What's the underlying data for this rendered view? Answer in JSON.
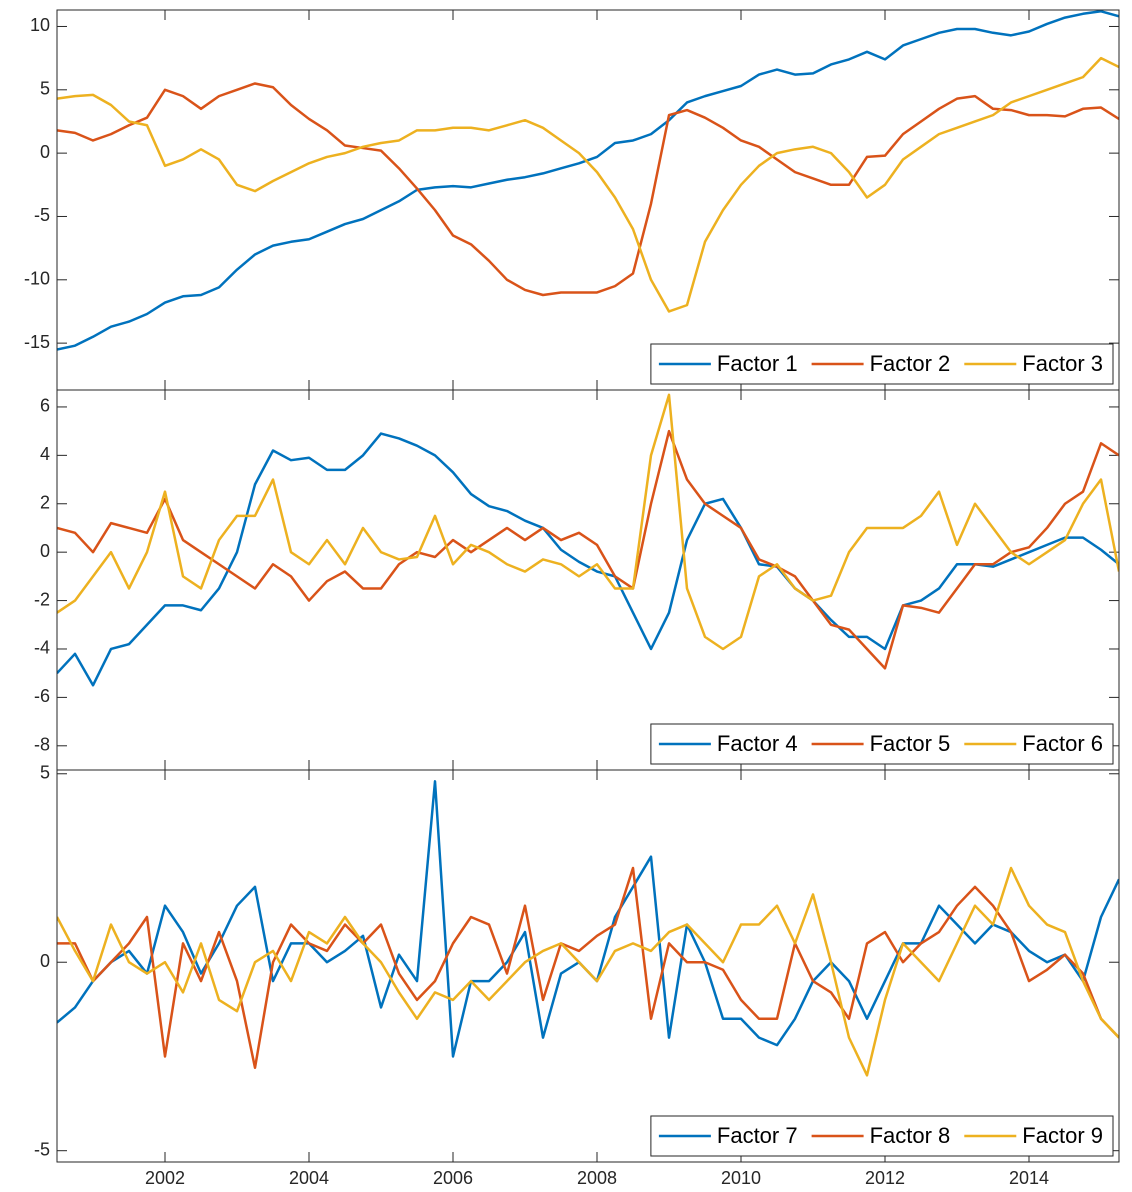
{
  "chart_data": [
    {
      "type": "line",
      "legend": "lower right",
      "x": [
        2000.5,
        2000.75,
        2001,
        2001.25,
        2001.5,
        2001.75,
        2002,
        2002.25,
        2002.5,
        2002.75,
        2003,
        2003.25,
        2003.5,
        2003.75,
        2004,
        2004.25,
        2004.5,
        2004.75,
        2005,
        2005.25,
        2005.5,
        2005.75,
        2006,
        2006.25,
        2006.5,
        2006.75,
        2007,
        2007.25,
        2007.5,
        2007.75,
        2008,
        2008.25,
        2008.5,
        2008.75,
        2009,
        2009.25,
        2009.5,
        2009.75,
        2010,
        2010.25,
        2010.5,
        2010.75,
        2011,
        2011.25,
        2011.5,
        2011.75,
        2012,
        2012.25,
        2012.5,
        2012.75,
        2013,
        2013.25,
        2013.5,
        2013.75,
        2014,
        2014.25,
        2014.5,
        2014.75,
        2015,
        2015.25
      ],
      "xlim": [
        2000.5,
        2015.25
      ],
      "ylim": [
        -18.7,
        11.3
      ],
      "yticks": [
        -15,
        -10,
        -5,
        0,
        5,
        10
      ],
      "series": [
        {
          "name": "Factor 1",
          "color": "#0072bd",
          "values": [
            -15.5,
            -15.2,
            -14.5,
            -13.7,
            -13.3,
            -12.7,
            -11.8,
            -11.3,
            -11.2,
            -10.6,
            -9.2,
            -8,
            -7.3,
            -7,
            -6.8,
            -6.2,
            -5.6,
            -5.2,
            -4.5,
            -3.8,
            -2.9,
            -2.7,
            -2.6,
            -2.7,
            -2.4,
            -2.1,
            -1.9,
            -1.6,
            -1.2,
            -0.8,
            -0.3,
            0.8,
            1,
            1.5,
            2.6,
            4,
            4.5,
            4.9,
            5.3,
            6.2,
            6.6,
            6.2,
            6.3,
            7,
            7.4,
            8,
            7.4,
            8.5,
            9,
            9.5,
            9.8,
            9.8,
            9.5,
            9.3,
            9.6,
            10.2,
            10.7,
            11,
            11.2,
            10.8
          ]
        },
        {
          "name": "Factor 2",
          "color": "#d95319",
          "values": [
            1.8,
            1.6,
            1,
            1.5,
            2.2,
            2.8,
            5,
            4.5,
            3.5,
            4.5,
            5,
            5.5,
            5.2,
            3.8,
            2.7,
            1.8,
            0.6,
            0.4,
            0.2,
            -1.2,
            -2.8,
            -4.5,
            -6.5,
            -7.2,
            -8.5,
            -10,
            -10.8,
            -11.2,
            -11,
            -11,
            -11,
            -10.5,
            -9.5,
            -4,
            3,
            3.4,
            2.8,
            2,
            1,
            0.5,
            -0.5,
            -1.5,
            -2,
            -2.5,
            -2.5,
            -0.3,
            -0.2,
            1.5,
            2.5,
            3.5,
            4.3,
            4.5,
            3.5,
            3.4,
            3,
            3,
            2.9,
            3.5,
            3.6,
            2.7
          ]
        },
        {
          "name": "Factor 3",
          "color": "#edb120",
          "values": [
            4.3,
            4.5,
            4.6,
            3.8,
            2.5,
            2.2,
            -1,
            -0.5,
            0.3,
            -0.5,
            -2.5,
            -3,
            -2.2,
            -1.5,
            -0.8,
            -0.3,
            0,
            0.5,
            0.8,
            1,
            1.8,
            1.8,
            2,
            2,
            1.8,
            2.2,
            2.6,
            2,
            1,
            0,
            -1.5,
            -3.5,
            -6,
            -10,
            -12.5,
            -12,
            -7,
            -4.5,
            -2.5,
            -1,
            0,
            0.3,
            0.5,
            0,
            -1.5,
            -3.5,
            -2.5,
            -0.5,
            0.5,
            1.5,
            2,
            2.5,
            3,
            4,
            4.5,
            5,
            5.5,
            6,
            7.5,
            6.8
          ]
        }
      ]
    },
    {
      "type": "line",
      "legend": "lower right",
      "x": [
        2000.5,
        2000.75,
        2001,
        2001.25,
        2001.5,
        2001.75,
        2002,
        2002.25,
        2002.5,
        2002.75,
        2003,
        2003.25,
        2003.5,
        2003.75,
        2004,
        2004.25,
        2004.5,
        2004.75,
        2005,
        2005.25,
        2005.5,
        2005.75,
        2006,
        2006.25,
        2006.5,
        2006.75,
        2007,
        2007.25,
        2007.5,
        2007.75,
        2008,
        2008.25,
        2008.5,
        2008.75,
        2009,
        2009.25,
        2009.5,
        2009.75,
        2010,
        2010.25,
        2010.5,
        2010.75,
        2011,
        2011.25,
        2011.5,
        2011.75,
        2012,
        2012.25,
        2012.5,
        2012.75,
        2013,
        2013.25,
        2013.5,
        2013.75,
        2014,
        2014.25,
        2014.5,
        2014.75,
        2015,
        2015.25
      ],
      "xlim": [
        2000.5,
        2015.25
      ],
      "ylim": [
        -9,
        6.7
      ],
      "yticks": [
        -8,
        -6,
        -4,
        -2,
        0,
        2,
        4,
        6
      ],
      "series": [
        {
          "name": "Factor 4",
          "color": "#0072bd",
          "values": [
            -5,
            -4.2,
            -5.5,
            -4,
            -3.8,
            -3,
            -2.2,
            -2.2,
            -2.4,
            -1.5,
            0,
            2.8,
            4.2,
            3.8,
            3.9,
            3.4,
            3.4,
            4,
            4.9,
            4.7,
            4.4,
            4,
            3.3,
            2.4,
            1.9,
            1.7,
            1.3,
            1,
            0.1,
            -0.4,
            -0.8,
            -1,
            -2.5,
            -4,
            -2.5,
            0.5,
            2,
            2.2,
            1,
            -0.5,
            -0.6,
            -1.5,
            -2,
            -2.8,
            -3.5,
            -3.5,
            -4,
            -2.2,
            -2,
            -1.5,
            -0.5,
            -0.5,
            -0.6,
            -0.3,
            0,
            0.3,
            0.6,
            0.6,
            0.1,
            -0.5
          ]
        },
        {
          "name": "Factor 5",
          "color": "#d95319",
          "values": [
            1,
            0.8,
            0,
            1.2,
            1,
            0.8,
            2.2,
            0.5,
            0,
            -0.5,
            -1,
            -1.5,
            -0.5,
            -1,
            -2,
            -1.2,
            -0.8,
            -1.5,
            -1.5,
            -0.5,
            0,
            -0.2,
            0.5,
            0,
            0.5,
            1,
            0.5,
            1,
            0.5,
            0.8,
            0.3,
            -1,
            -1.5,
            2,
            5,
            3,
            2,
            1.5,
            1,
            -0.3,
            -0.6,
            -1,
            -2,
            -3,
            -3.2,
            -4,
            -4.8,
            -2.2,
            -2.3,
            -2.5,
            -1.5,
            -0.5,
            -0.5,
            0,
            0.2,
            1,
            2,
            2.5,
            4.5,
            4
          ]
        },
        {
          "name": "Factor 6",
          "color": "#edb120",
          "values": [
            -2.5,
            -2,
            -1,
            0,
            -1.5,
            0,
            2.5,
            -1,
            -1.5,
            0.5,
            1.5,
            1.5,
            3,
            0,
            -0.5,
            0.5,
            -0.5,
            1,
            0,
            -0.3,
            -0.2,
            1.5,
            -0.5,
            0.3,
            0,
            -0.5,
            -0.8,
            -0.3,
            -0.5,
            -1,
            -0.5,
            -1.5,
            -1.5,
            4,
            6.5,
            -1.5,
            -3.5,
            -4,
            -3.5,
            -1,
            -0.5,
            -1.5,
            -2,
            -1.8,
            0,
            1,
            1,
            1,
            1.5,
            2.5,
            0.3,
            2,
            1,
            0,
            -0.5,
            0,
            0.5,
            2,
            3,
            -0.8
          ]
        }
      ]
    },
    {
      "type": "line",
      "legend": "lower right",
      "x": [
        2000.5,
        2000.75,
        2001,
        2001.25,
        2001.5,
        2001.75,
        2002,
        2002.25,
        2002.5,
        2002.75,
        2003,
        2003.25,
        2003.5,
        2003.75,
        2004,
        2004.25,
        2004.5,
        2004.75,
        2005,
        2005.25,
        2005.5,
        2005.75,
        2006,
        2006.25,
        2006.5,
        2006.75,
        2007,
        2007.25,
        2007.5,
        2007.75,
        2008,
        2008.25,
        2008.5,
        2008.75,
        2009,
        2009.25,
        2009.5,
        2009.75,
        2010,
        2010.25,
        2010.5,
        2010.75,
        2011,
        2011.25,
        2011.5,
        2011.75,
        2012,
        2012.25,
        2012.5,
        2012.75,
        2013,
        2013.25,
        2013.5,
        2013.75,
        2014,
        2014.25,
        2014.5,
        2014.75,
        2015,
        2015.25
      ],
      "xlim": [
        2000.5,
        2015.25
      ],
      "xticks": [
        2002,
        2004,
        2006,
        2008,
        2010,
        2012,
        2014
      ],
      "ylim": [
        -5.3,
        5.1
      ],
      "yticks": [
        -5,
        0,
        5
      ],
      "series": [
        {
          "name": "Factor 7",
          "color": "#0072bd",
          "values": [
            -1.6,
            -1.2,
            -0.5,
            0,
            0.3,
            -0.3,
            1.5,
            0.8,
            -0.3,
            0.5,
            1.5,
            2,
            -0.5,
            0.5,
            0.5,
            0,
            0.3,
            0.7,
            -1.2,
            0.2,
            -0.5,
            4.8,
            -2.5,
            -0.5,
            -0.5,
            0,
            0.8,
            -2,
            -0.3,
            0,
            -0.5,
            1.2,
            2,
            2.8,
            -2,
            1,
            0,
            -1.5,
            -1.5,
            -2,
            -2.2,
            -1.5,
            -0.5,
            0,
            -0.5,
            -1.5,
            -0.5,
            0.5,
            0.5,
            1.5,
            1,
            0.5,
            1,
            0.8,
            0.3,
            0,
            0.2,
            -0.5,
            1.2,
            2.2
          ]
        },
        {
          "name": "Factor 8",
          "color": "#d95319",
          "values": [
            0.5,
            0.5,
            -0.5,
            0,
            0.5,
            1.2,
            -2.5,
            0.5,
            -0.5,
            0.8,
            -0.5,
            -2.8,
            0,
            1,
            0.5,
            0.3,
            1,
            0.5,
            1,
            -0.3,
            -1,
            -0.5,
            0.5,
            1.2,
            1,
            -0.3,
            1.5,
            -1,
            0.5,
            0.3,
            0.7,
            1,
            2.5,
            -1.5,
            0.5,
            0,
            0,
            -0.2,
            -1,
            -1.5,
            -1.5,
            0.5,
            -0.5,
            -0.8,
            -1.5,
            0.5,
            0.8,
            0,
            0.5,
            0.8,
            1.5,
            2,
            1.5,
            0.8,
            -0.5,
            -0.2,
            0.2,
            -0.3,
            -1.5,
            -2
          ]
        },
        {
          "name": "Factor 9",
          "color": "#edb120",
          "values": [
            1.2,
            0.3,
            -0.5,
            1,
            0,
            -0.3,
            0,
            -0.8,
            0.5,
            -1,
            -1.3,
            0,
            0.3,
            -0.5,
            0.8,
            0.5,
            1.2,
            0.5,
            0,
            -0.8,
            -1.5,
            -0.8,
            -1,
            -0.5,
            -1,
            -0.5,
            0,
            0.3,
            0.5,
            0,
            -0.5,
            0.3,
            0.5,
            0.3,
            0.8,
            1,
            0.5,
            0,
            1,
            1,
            1.5,
            0.5,
            1.8,
            0,
            -2,
            -3,
            -1,
            0.5,
            0,
            -0.5,
            0.5,
            1.5,
            1,
            2.5,
            1.5,
            1,
            0.8,
            -0.5,
            -1.5,
            -2
          ]
        }
      ]
    }
  ]
}
